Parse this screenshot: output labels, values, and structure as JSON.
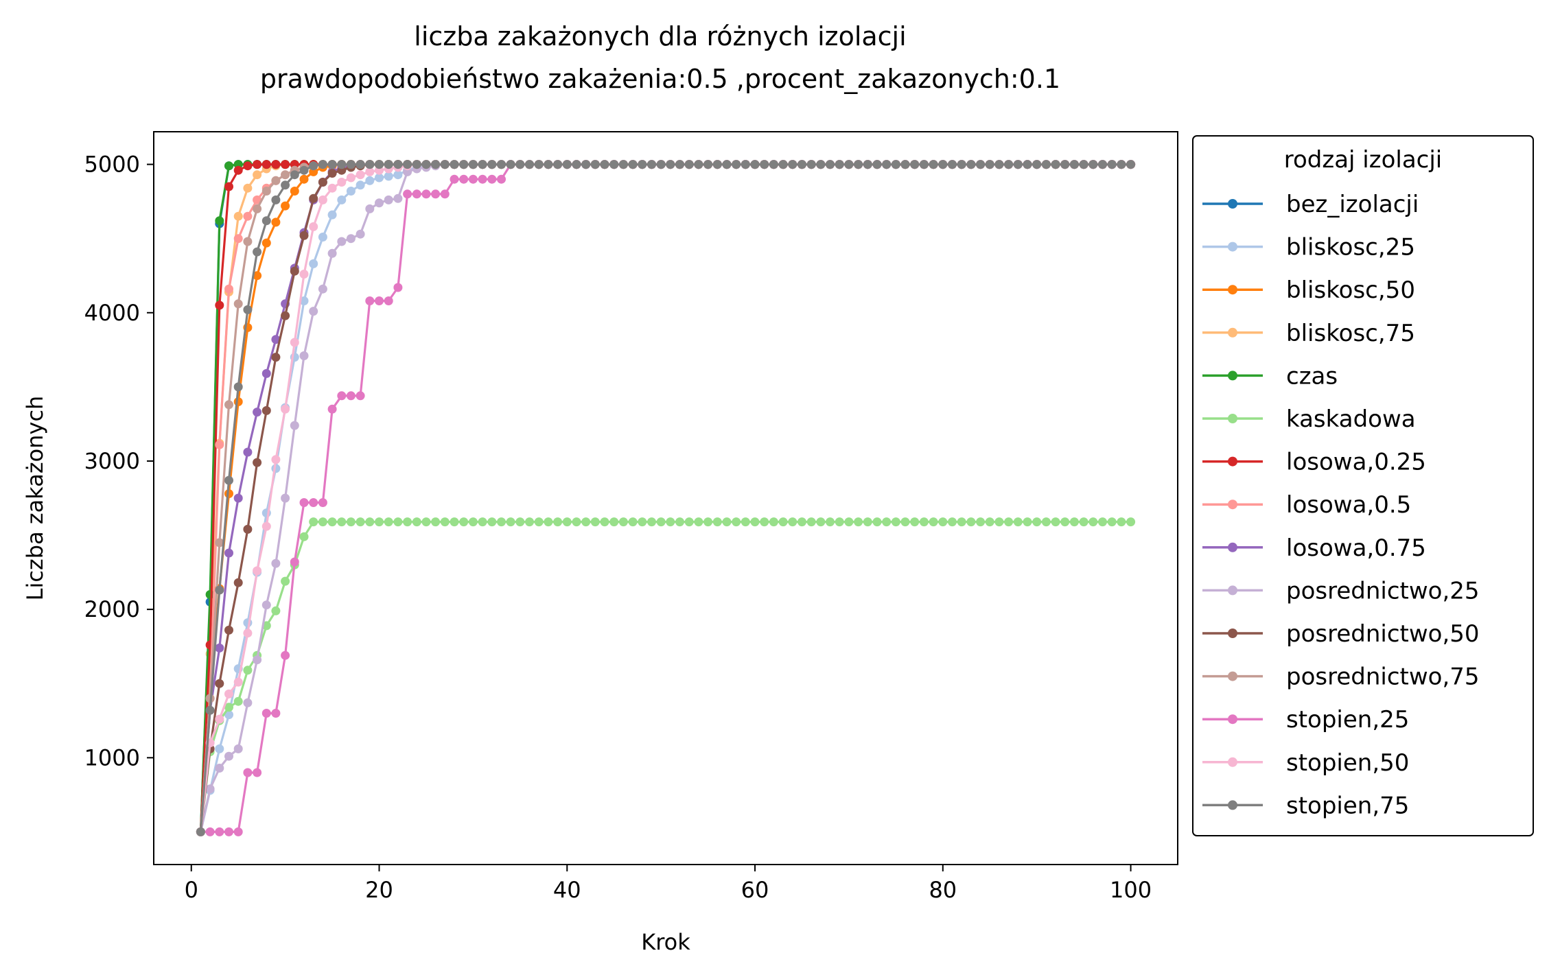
{
  "chart_data": {
    "type": "line",
    "title": "liczba zakażonych dla różnych izolacji",
    "subtitle": "prawdopodobieństwo zakażenia:0.5 ,procent_zakazonych:0.1",
    "xlabel": "Krok",
    "ylabel": "Liczba zakażonych",
    "xlim": [
      -4,
      105
    ],
    "ylim": [
      280,
      5220
    ],
    "xticks": [
      0,
      20,
      40,
      60,
      80,
      100
    ],
    "yticks": [
      1000,
      2000,
      3000,
      4000,
      5000
    ],
    "grid": false,
    "legend": {
      "title": "rodzaj izolacji",
      "placement": "outside right"
    },
    "plateau_start": 40,
    "x_end": 100,
    "series": [
      {
        "name": "bez_izolacji",
        "color": "#1f77b4",
        "points": [
          [
            1,
            500
          ],
          [
            2,
            2050
          ],
          [
            3,
            4600
          ],
          [
            4,
            4990
          ],
          [
            5,
            5000
          ],
          [
            6,
            5000
          ]
        ],
        "plateau": 5000
      },
      {
        "name": "bliskosc,25",
        "color": "#aec7e8",
        "points": [
          [
            1,
            500
          ],
          [
            2,
            780
          ],
          [
            3,
            1060
          ],
          [
            4,
            1290
          ],
          [
            5,
            1600
          ],
          [
            6,
            1910
          ],
          [
            7,
            2250
          ],
          [
            8,
            2650
          ],
          [
            9,
            2950
          ],
          [
            10,
            3360
          ],
          [
            11,
            3700
          ],
          [
            12,
            4080
          ],
          [
            13,
            4330
          ],
          [
            14,
            4510
          ],
          [
            15,
            4660
          ],
          [
            16,
            4760
          ],
          [
            17,
            4820
          ],
          [
            18,
            4860
          ],
          [
            19,
            4890
          ],
          [
            20,
            4910
          ],
          [
            21,
            4920
          ],
          [
            22,
            4930
          ],
          [
            23,
            4960
          ],
          [
            24,
            4980
          ],
          [
            25,
            4990
          ],
          [
            26,
            5000
          ]
        ],
        "plateau": 5000
      },
      {
        "name": "bliskosc,50",
        "color": "#ff7f0e",
        "points": [
          [
            1,
            500
          ],
          [
            2,
            1480
          ],
          [
            3,
            2140
          ],
          [
            4,
            2780
          ],
          [
            5,
            3400
          ],
          [
            6,
            3900
          ],
          [
            7,
            4250
          ],
          [
            8,
            4470
          ],
          [
            9,
            4610
          ],
          [
            10,
            4720
          ],
          [
            11,
            4820
          ],
          [
            12,
            4900
          ],
          [
            13,
            4950
          ],
          [
            14,
            4980
          ],
          [
            15,
            4990
          ],
          [
            16,
            5000
          ]
        ],
        "plateau": 5000
      },
      {
        "name": "bliskosc,75",
        "color": "#ffbb78",
        "points": [
          [
            1,
            500
          ],
          [
            2,
            1700
          ],
          [
            3,
            3120
          ],
          [
            4,
            4140
          ],
          [
            5,
            4650
          ],
          [
            6,
            4840
          ],
          [
            7,
            4930
          ],
          [
            8,
            4970
          ],
          [
            9,
            4990
          ],
          [
            10,
            5000
          ]
        ],
        "plateau": 5000
      },
      {
        "name": "czas",
        "color": "#2ca02c",
        "points": [
          [
            1,
            500
          ],
          [
            2,
            2100
          ],
          [
            3,
            4620
          ],
          [
            4,
            4990
          ],
          [
            5,
            5000
          ],
          [
            6,
            5000
          ]
        ],
        "plateau": 5000
      },
      {
        "name": "kaskadowa",
        "color": "#98df8a",
        "points": [
          [
            1,
            500
          ],
          [
            2,
            1040
          ],
          [
            3,
            1250
          ],
          [
            4,
            1340
          ],
          [
            5,
            1380
          ],
          [
            6,
            1590
          ],
          [
            7,
            1690
          ],
          [
            8,
            1890
          ],
          [
            9,
            1990
          ],
          [
            10,
            2190
          ],
          [
            11,
            2300
          ],
          [
            12,
            2490
          ],
          [
            13,
            2590
          ],
          [
            14,
            2590
          ]
        ],
        "plateau": 2590
      },
      {
        "name": "losowa,0.25",
        "color": "#d62728",
        "points": [
          [
            1,
            500
          ],
          [
            2,
            1760
          ],
          [
            3,
            4050
          ],
          [
            4,
            4850
          ],
          [
            5,
            4960
          ],
          [
            6,
            4990
          ],
          [
            7,
            5000
          ]
        ],
        "plateau": 5000
      },
      {
        "name": "losowa,0.5",
        "color": "#ff9896",
        "points": [
          [
            1,
            500
          ],
          [
            2,
            1400
          ],
          [
            3,
            3110
          ],
          [
            4,
            4160
          ],
          [
            5,
            4500
          ],
          [
            6,
            4650
          ],
          [
            7,
            4760
          ],
          [
            8,
            4840
          ],
          [
            9,
            4890
          ],
          [
            10,
            4930
          ],
          [
            11,
            4960
          ],
          [
            12,
            4980
          ],
          [
            13,
            4990
          ],
          [
            14,
            5000
          ]
        ],
        "plateau": 5000
      },
      {
        "name": "losowa,0.75",
        "color": "#9467bd",
        "points": [
          [
            1,
            500
          ],
          [
            2,
            1320
          ],
          [
            3,
            1740
          ],
          [
            4,
            2380
          ],
          [
            5,
            2750
          ],
          [
            6,
            3060
          ],
          [
            7,
            3330
          ],
          [
            8,
            3590
          ],
          [
            9,
            3820
          ],
          [
            10,
            4060
          ],
          [
            11,
            4300
          ],
          [
            12,
            4540
          ],
          [
            13,
            4760
          ],
          [
            14,
            4880
          ],
          [
            15,
            4950
          ],
          [
            16,
            4980
          ],
          [
            17,
            4990
          ],
          [
            18,
            5000
          ]
        ],
        "plateau": 5000
      },
      {
        "name": "posrednictwo,25",
        "color": "#c5b0d5",
        "points": [
          [
            1,
            500
          ],
          [
            2,
            790
          ],
          [
            3,
            930
          ],
          [
            4,
            1010
          ],
          [
            5,
            1060
          ],
          [
            6,
            1370
          ],
          [
            7,
            1660
          ],
          [
            8,
            2030
          ],
          [
            9,
            2310
          ],
          [
            10,
            2750
          ],
          [
            11,
            3240
          ],
          [
            12,
            3710
          ],
          [
            13,
            4010
          ],
          [
            14,
            4160
          ],
          [
            15,
            4400
          ],
          [
            16,
            4480
          ],
          [
            17,
            4500
          ],
          [
            18,
            4530
          ],
          [
            19,
            4700
          ],
          [
            20,
            4740
          ],
          [
            21,
            4760
          ],
          [
            22,
            4770
          ],
          [
            23,
            4950
          ],
          [
            24,
            4970
          ],
          [
            25,
            4980
          ],
          [
            26,
            4990
          ],
          [
            27,
            5000
          ]
        ],
        "plateau": 5000
      },
      {
        "name": "posrednictwo,50",
        "color": "#8c564b",
        "points": [
          [
            1,
            500
          ],
          [
            2,
            1060
          ],
          [
            3,
            1500
          ],
          [
            4,
            1860
          ],
          [
            5,
            2180
          ],
          [
            6,
            2540
          ],
          [
            7,
            2990
          ],
          [
            8,
            3340
          ],
          [
            9,
            3700
          ],
          [
            10,
            3980
          ],
          [
            11,
            4280
          ],
          [
            12,
            4520
          ],
          [
            13,
            4770
          ],
          [
            14,
            4880
          ],
          [
            15,
            4940
          ],
          [
            16,
            4960
          ],
          [
            17,
            4980
          ],
          [
            18,
            4990
          ],
          [
            19,
            5000
          ]
        ],
        "plateau": 5000
      },
      {
        "name": "posrednictwo,75",
        "color": "#c49c94",
        "points": [
          [
            1,
            500
          ],
          [
            2,
            1400
          ],
          [
            3,
            2450
          ],
          [
            4,
            3380
          ],
          [
            5,
            4060
          ],
          [
            6,
            4480
          ],
          [
            7,
            4700
          ],
          [
            8,
            4820
          ],
          [
            9,
            4890
          ],
          [
            10,
            4930
          ],
          [
            11,
            4960
          ],
          [
            12,
            4980
          ],
          [
            13,
            4990
          ],
          [
            14,
            5000
          ]
        ],
        "plateau": 5000
      },
      {
        "name": "stopien,25",
        "color": "#e377c2",
        "points": [
          [
            1,
            500
          ],
          [
            2,
            500
          ],
          [
            3,
            500
          ],
          [
            4,
            500
          ],
          [
            5,
            500
          ],
          [
            6,
            900
          ],
          [
            7,
            900
          ],
          [
            8,
            1300
          ],
          [
            9,
            1300
          ],
          [
            10,
            1690
          ],
          [
            11,
            2320
          ],
          [
            12,
            2720
          ],
          [
            13,
            2720
          ],
          [
            14,
            2720
          ],
          [
            15,
            3350
          ],
          [
            16,
            3440
          ],
          [
            17,
            3440
          ],
          [
            18,
            3440
          ],
          [
            19,
            4080
          ],
          [
            20,
            4080
          ],
          [
            21,
            4080
          ],
          [
            22,
            4170
          ],
          [
            23,
            4800
          ],
          [
            24,
            4800
          ],
          [
            25,
            4800
          ],
          [
            26,
            4800
          ],
          [
            27,
            4800
          ],
          [
            28,
            4900
          ],
          [
            29,
            4900
          ],
          [
            30,
            4900
          ],
          [
            31,
            4900
          ],
          [
            32,
            4900
          ],
          [
            33,
            4900
          ],
          [
            34,
            5000
          ]
        ],
        "plateau": 5000
      },
      {
        "name": "stopien,50",
        "color": "#f7b6d2",
        "points": [
          [
            1,
            500
          ],
          [
            2,
            1100
          ],
          [
            3,
            1260
          ],
          [
            4,
            1430
          ],
          [
            5,
            1510
          ],
          [
            6,
            1840
          ],
          [
            7,
            2260
          ],
          [
            8,
            2560
          ],
          [
            9,
            3010
          ],
          [
            10,
            3350
          ],
          [
            11,
            3800
          ],
          [
            12,
            4260
          ],
          [
            13,
            4580
          ],
          [
            14,
            4760
          ],
          [
            15,
            4840
          ],
          [
            16,
            4880
          ],
          [
            17,
            4910
          ],
          [
            18,
            4930
          ],
          [
            19,
            4950
          ],
          [
            20,
            4960
          ],
          [
            21,
            4970
          ],
          [
            22,
            4980
          ],
          [
            23,
            4990
          ],
          [
            24,
            5000
          ]
        ],
        "plateau": 5000
      },
      {
        "name": "stopien,75",
        "color": "#7f7f7f",
        "points": [
          [
            1,
            500
          ],
          [
            2,
            1320
          ],
          [
            3,
            2130
          ],
          [
            4,
            2870
          ],
          [
            5,
            3500
          ],
          [
            6,
            4020
          ],
          [
            7,
            4410
          ],
          [
            8,
            4620
          ],
          [
            9,
            4760
          ],
          [
            10,
            4860
          ],
          [
            11,
            4930
          ],
          [
            12,
            4960
          ],
          [
            13,
            4990
          ],
          [
            14,
            5000
          ]
        ],
        "plateau": 5000
      }
    ]
  }
}
